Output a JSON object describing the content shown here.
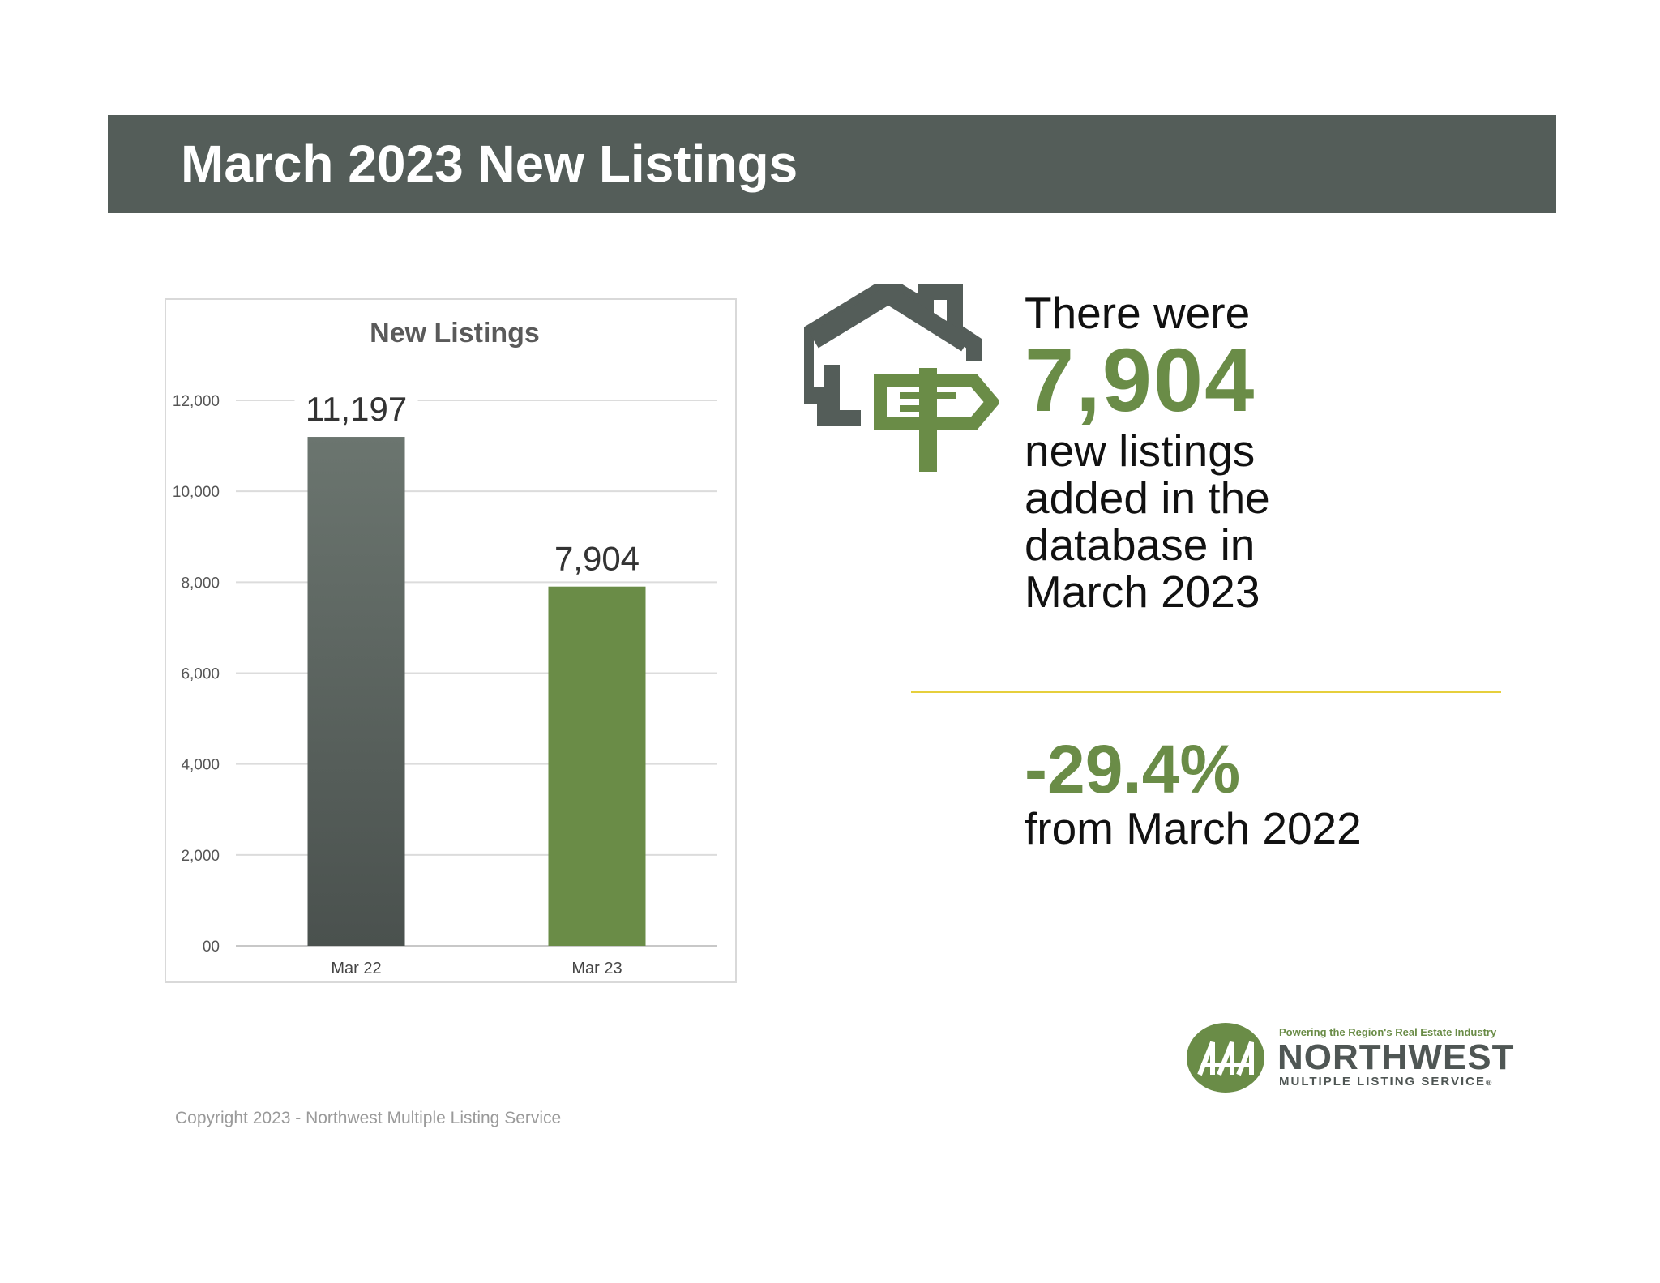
{
  "header": {
    "title": "March 2023 New Listings"
  },
  "chart_data": {
    "type": "bar",
    "title": "New Listings",
    "categories": [
      "Mar 22",
      "Mar 23"
    ],
    "values": [
      11197,
      7904
    ],
    "data_labels": [
      "11,197",
      "7,904"
    ],
    "bar_colors": [
      "#545d59",
      "#6a8c47"
    ],
    "ylim": [
      0,
      12000
    ],
    "yticks": [
      0,
      2000,
      4000,
      6000,
      8000,
      10000,
      12000
    ],
    "ytick_labels": [
      "00",
      "2,000",
      "4,000",
      "6,000",
      "8,000",
      "10,000",
      "12,000"
    ],
    "xlabel": "",
    "ylabel": "",
    "grid": true
  },
  "stat": {
    "intro": "There were",
    "value": "7,904",
    "lines": [
      "new listings",
      "added in the",
      "database in",
      "March 2023"
    ]
  },
  "change": {
    "value": "-29.4%",
    "label": "from March 2022"
  },
  "logo": {
    "tagline": "Powering the Region's Real Estate Industry",
    "name": "NORTHWEST",
    "subtitle": "MULTIPLE LISTING SERVICE",
    "registered": "®"
  },
  "icons": {
    "house": "house-signpost-icon",
    "logo_mark": "nwmls-mark-icon"
  },
  "colors": {
    "banner": "#545d59",
    "accent_green": "#6a8c47",
    "divider": "#e6cf3c"
  },
  "footer": {
    "copyright": "Copyright 2023 - Northwest Multiple Listing Service"
  }
}
